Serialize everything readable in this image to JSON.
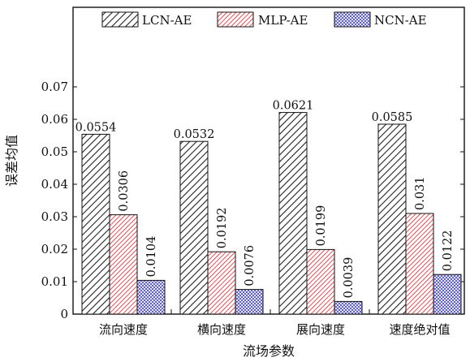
{
  "chart_data": {
    "type": "bar",
    "xlabel": "流场参数",
    "ylabel": "误差均值",
    "ylim": [
      0,
      0.075
    ],
    "yticks": [
      0,
      0.01,
      0.02,
      0.03,
      0.04,
      0.05,
      0.06,
      0.07
    ],
    "ytick_labels": [
      "0",
      "0.01",
      "0.02",
      "0.03",
      "0.04",
      "0.05",
      "0.06",
      "0.07"
    ],
    "categories": [
      "流向速度",
      "横向速度",
      "展向速度",
      "速度绝对值"
    ],
    "series": [
      {
        "name": "LCN-AE",
        "values": [
          0.0554,
          0.0532,
          0.0621,
          0.0585
        ],
        "labels": [
          "0.0554",
          "0.0532",
          "0.0621",
          "0.0585"
        ],
        "label_orientation": "horizontal",
        "color": "#222222",
        "pattern": "diagonal-hatch"
      },
      {
        "name": "MLP-AE",
        "values": [
          0.0306,
          0.0192,
          0.0199,
          0.031
        ],
        "labels": [
          "0.0306",
          "0.0192",
          "0.0199",
          "0.031"
        ],
        "label_orientation": "vertical",
        "color": "#e8141c",
        "pattern": "dense-diagonal-hatch"
      },
      {
        "name": "NCN-AE",
        "values": [
          0.0104,
          0.0076,
          0.0039,
          0.0122
        ],
        "labels": [
          "0.0104",
          "0.0076",
          "0.0039",
          "0.0122"
        ],
        "label_orientation": "vertical",
        "color": "#2a2ad0",
        "pattern": "cross-hatch"
      }
    ],
    "legend": {
      "position": "top",
      "orientation": "horizontal"
    },
    "grid": false
  }
}
